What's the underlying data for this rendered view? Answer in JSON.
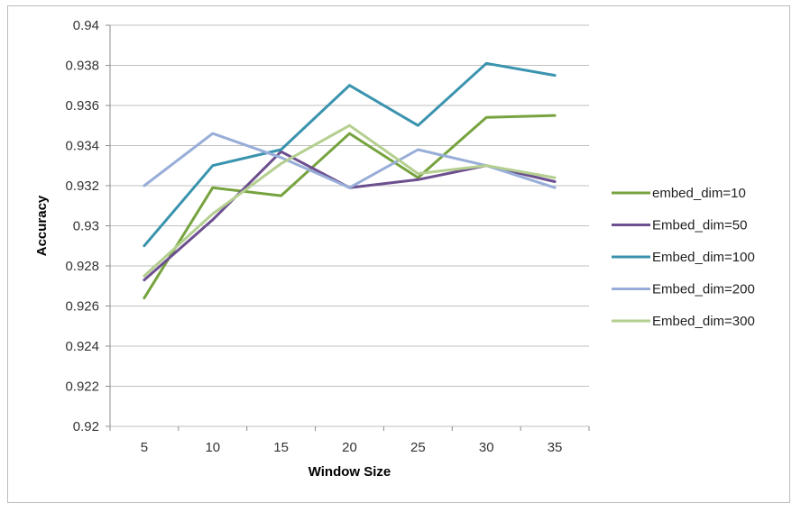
{
  "chart_data": {
    "type": "line",
    "title": "",
    "xlabel": "Window Size",
    "ylabel": "Accuracy",
    "x": [
      5,
      10,
      15,
      20,
      25,
      30,
      35
    ],
    "x_tick_labels": [
      "5",
      "10",
      "15",
      "20",
      "25",
      "30",
      "35"
    ],
    "ylim": [
      0.92,
      0.94
    ],
    "y_tick_labels": [
      "0.92",
      "0.922",
      "0.924",
      "0.926",
      "0.928",
      "0.93",
      "0.932",
      "0.934",
      "0.936",
      "0.938",
      "0.94"
    ],
    "y_ticks": [
      0.92,
      0.922,
      0.924,
      0.926,
      0.928,
      0.93,
      0.932,
      0.934,
      0.936,
      0.938,
      0.94
    ],
    "grid": "horizontal",
    "legend_position": "right",
    "series": [
      {
        "name": "embed_dim=10",
        "color": "#77a33f",
        "values": [
          0.9264,
          0.9319,
          0.9315,
          0.9346,
          0.9324,
          0.9354,
          0.9355
        ]
      },
      {
        "name": "Embed_dim=50",
        "color": "#6c4f8f",
        "values": [
          0.9273,
          0.9303,
          0.9337,
          0.9319,
          0.9323,
          0.933,
          0.9322
        ]
      },
      {
        "name": "Embed_dim=100",
        "color": "#3a93ae",
        "values": [
          0.929,
          0.933,
          0.9338,
          0.937,
          0.935,
          0.9381,
          0.9375
        ]
      },
      {
        "name": "Embed_dim=200",
        "color": "#98aed8",
        "values": [
          0.932,
          0.9346,
          0.9334,
          0.9319,
          0.9338,
          0.933,
          0.9319
        ]
      },
      {
        "name": "Embed_dim=300",
        "color": "#b4cf8f",
        "values": [
          0.9275,
          0.9306,
          0.9331,
          0.935,
          0.9326,
          0.933,
          0.9324
        ]
      }
    ]
  }
}
